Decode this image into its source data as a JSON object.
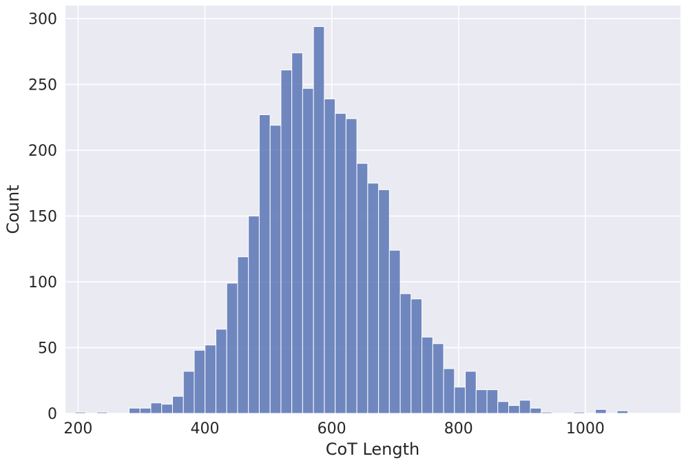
{
  "chart_data": {
    "type": "bar",
    "subtype": "histogram",
    "title": "",
    "xlabel": "CoT Length",
    "ylabel": "Count",
    "xlim": [
      180,
      1150
    ],
    "ylim": [
      0,
      310
    ],
    "xticks": [
      200,
      400,
      600,
      800,
      1000
    ],
    "yticks": [
      0,
      50,
      100,
      150,
      200,
      250,
      300
    ],
    "bin_start": 195,
    "bin_width": 17.1,
    "values": [
      1,
      0,
      1,
      0,
      0,
      4,
      4,
      8,
      7,
      13,
      32,
      48,
      52,
      64,
      99,
      119,
      150,
      227,
      219,
      261,
      274,
      247,
      294,
      239,
      228,
      224,
      190,
      175,
      170,
      124,
      91,
      87,
      58,
      53,
      34,
      20,
      32,
      18,
      18,
      9,
      6,
      10,
      4,
      1,
      0,
      0,
      1,
      0,
      3,
      0,
      2
    ],
    "grid": true,
    "background": "#eaeaf2",
    "bar_color": "#5975b5"
  }
}
